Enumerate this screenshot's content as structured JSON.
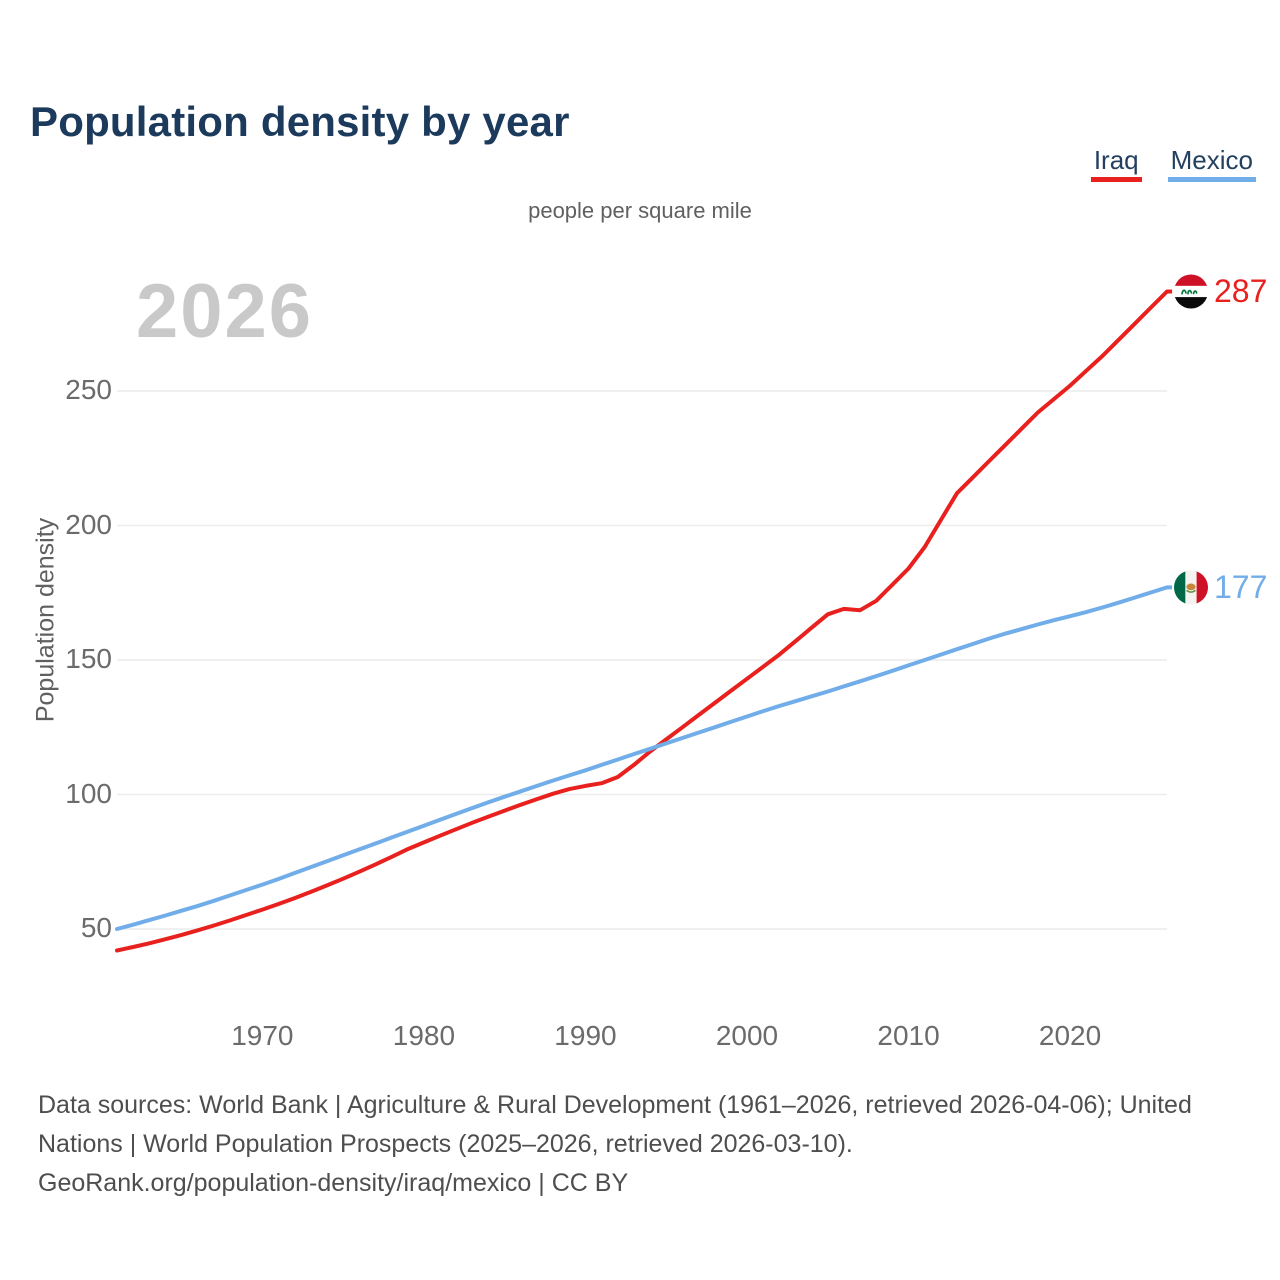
{
  "title": "Population density by year",
  "subtitle": "people per square mile",
  "watermark": "2026",
  "legend": [
    {
      "label": "Iraq",
      "color": "#e9211e"
    },
    {
      "label": "Mexico",
      "color": "#70ade9"
    }
  ],
  "y_axis": {
    "label": "Population density",
    "ticks": [
      50,
      100,
      150,
      200,
      250
    ]
  },
  "x_axis": {
    "ticks": [
      1970,
      1980,
      1990,
      2000,
      2010,
      2020
    ]
  },
  "end_labels": {
    "iraq": {
      "value": "287",
      "flag": "iraq-flag-icon"
    },
    "mexico": {
      "value": "177",
      "flag": "mexico-flag-icon"
    }
  },
  "footer": {
    "lines": [
      "Data sources: World Bank | Agriculture & Rural Development (1961–2026, retrieved 2026-04-06); United",
      "Nations | World Population Prospects (2025–2026, retrieved 2026-03-10).",
      "GeoRank.org/population-density/iraq/mexico | CC BY"
    ]
  },
  "chart_data": {
    "type": "line",
    "title": "Population density by year",
    "unit": "people per square mile",
    "ylabel": "Population density",
    "xlim": [
      1961,
      2026
    ],
    "ylim": [
      40,
      290
    ],
    "grid": "horizontal",
    "legend_position": "top-right",
    "x": [
      1961,
      1962,
      1963,
      1964,
      1965,
      1966,
      1967,
      1968,
      1969,
      1970,
      1971,
      1972,
      1973,
      1974,
      1975,
      1976,
      1977,
      1978,
      1979,
      1980,
      1981,
      1982,
      1983,
      1984,
      1985,
      1986,
      1987,
      1988,
      1989,
      1990,
      1991,
      1992,
      1993,
      1994,
      1995,
      1996,
      1997,
      1998,
      1999,
      2000,
      2001,
      2002,
      2003,
      2004,
      2005,
      2006,
      2007,
      2008,
      2009,
      2010,
      2011,
      2012,
      2013,
      2014,
      2015,
      2016,
      2017,
      2018,
      2019,
      2020,
      2021,
      2022,
      2023,
      2024,
      2025,
      2026
    ],
    "series": [
      {
        "name": "Iraq",
        "color": "#e9211e",
        "end_value": 287,
        "values": [
          42,
          43.3,
          44.7,
          46.2,
          47.8,
          49.5,
          51.3,
          53.2,
          55.2,
          57.2,
          59.3,
          61.5,
          63.8,
          66.2,
          68.7,
          71.3,
          74,
          76.8,
          79.7,
          82.2,
          84.7,
          87.1,
          89.5,
          91.8,
          94,
          96.2,
          98.3,
          100.3,
          102,
          103.2,
          104.2,
          106.5,
          111,
          116,
          120.5,
          125,
          129.5,
          134,
          138.5,
          143,
          147.5,
          152,
          157,
          162,
          167,
          169,
          168.5,
          172,
          178,
          184,
          192,
          202,
          212,
          218,
          224,
          230,
          236,
          242,
          247,
          252,
          257.5,
          263,
          269,
          275,
          281,
          287
        ]
      },
      {
        "name": "Mexico",
        "color": "#70ade9",
        "end_value": 177,
        "values": [
          50,
          51.6,
          53.3,
          55,
          56.8,
          58.6,
          60.5,
          62.5,
          64.5,
          66.5,
          68.6,
          70.8,
          73,
          75.2,
          77.4,
          79.6,
          81.8,
          84,
          86.2,
          88.4,
          90.6,
          92.8,
          95,
          97.1,
          99.2,
          101.2,
          103.2,
          105.2,
          107.1,
          109,
          111,
          113,
          115,
          117,
          119,
          121,
          123,
          125,
          127,
          129,
          131,
          132.9,
          134.7,
          136.5,
          138.3,
          140.2,
          142.1,
          144,
          146,
          148,
          150,
          152,
          154,
          156,
          158,
          159.8,
          161.5,
          163.2,
          164.8,
          166.3,
          167.8,
          169.5,
          171.3,
          173.2,
          175.1,
          177
        ]
      }
    ]
  }
}
